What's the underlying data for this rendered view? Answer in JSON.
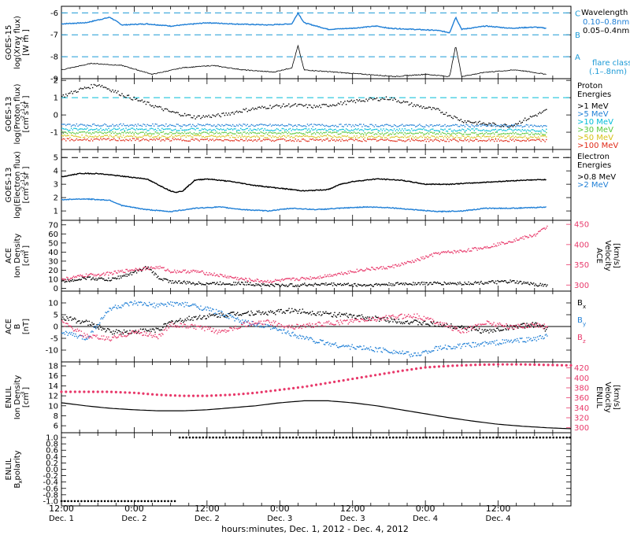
{
  "colors": {
    "black": "#000000",
    "blue": "#1f7fd6",
    "pink": "#e8386a",
    "cyan": "#00bcd8",
    "green": "#58c83a",
    "yellow": "#d6c218",
    "orange": "#f08a1c",
    "red": "#e02a18",
    "dash_cyan": "#1c9ad6"
  },
  "footer": {
    "title": "hours:minutes, Dec.  1, 2012 - Dec.  4, 2012",
    "ticks": [
      {
        "t": "12:00",
        "d": "Dec. 1"
      },
      {
        "t": "0:00",
        "d": "Dec. 2"
      },
      {
        "t": "12:00",
        "d": "Dec. 2"
      },
      {
        "t": "0:00",
        "d": "Dec. 3"
      },
      {
        "t": "12:00",
        "d": "Dec. 3"
      },
      {
        "t": "0:00",
        "d": "Dec. 4"
      },
      {
        "t": "12:00",
        "d": "Dec. 4"
      }
    ]
  },
  "chart_data": [
    {
      "type": "line",
      "panel": "goes15-xray",
      "ylabel_sat": "GOES-15",
      "ylabel_qty": "log(Xray flux)",
      "ylabel_unit": "[W m  ]",
      "ylabel_unit_sup": "-2",
      "ylim": [
        -9,
        -5.7
      ],
      "yticks": [
        "-9",
        "-8",
        "-7",
        "-6"
      ],
      "legend": {
        "title": "Wavelength",
        "entries": [
          {
            "name": "0.10–0.8nm",
            "color": "#1f7fd6"
          },
          {
            "name": "0.05–0.4nm",
            "color": "#000000"
          }
        ],
        "flare_label": "flare class",
        "flare_range": "(.1–.8nm)"
      },
      "flare_classes": [
        {
          "label": "A",
          "level": -8
        },
        {
          "label": "B",
          "level": -7
        },
        {
          "label": "C",
          "level": -6
        }
      ],
      "series": [
        {
          "color": "#1f7fd6",
          "x": [
            0,
            4,
            8,
            10,
            14,
            18,
            24,
            28,
            34,
            38,
            39,
            40,
            44,
            48,
            52,
            54,
            58,
            62,
            64,
            65,
            66,
            70,
            74,
            78,
            80
          ],
          "values": [
            -6.5,
            -6.45,
            -6.2,
            -6.55,
            -6.5,
            -6.6,
            -6.45,
            -6.5,
            -6.55,
            -6.5,
            -6.0,
            -6.45,
            -6.75,
            -6.7,
            -6.6,
            -6.7,
            -6.75,
            -6.8,
            -6.9,
            -6.2,
            -6.75,
            -6.6,
            -6.7,
            -6.65,
            -6.7
          ]
        },
        {
          "color": "#000000",
          "x": [
            0,
            5,
            10,
            15,
            20,
            25,
            30,
            35,
            38,
            39,
            40,
            45,
            50,
            55,
            60,
            64,
            65,
            66,
            70,
            75,
            80
          ],
          "values": [
            -8.6,
            -8.3,
            -8.4,
            -8.8,
            -8.5,
            -8.4,
            -8.6,
            -8.7,
            -8.5,
            -7.5,
            -8.6,
            -8.7,
            -8.8,
            -8.9,
            -8.8,
            -8.9,
            -7.5,
            -8.9,
            -8.7,
            -8.6,
            -8.8
          ]
        }
      ]
    },
    {
      "type": "scatter",
      "panel": "goes13-proton",
      "ylabel_sat": "GOES-13",
      "ylabel_qty": "log(Proton flux)",
      "ylabel_unit": "[cm  s  sr  ]",
      "ylabel_unit_sup": "-2   -1   -1",
      "ylim": [
        -2,
        2.1
      ],
      "yticks": [
        "-1",
        "0",
        "1",
        "2"
      ],
      "threshold": 1,
      "legend": {
        "title": "Proton",
        "title2": "Energies"
      },
      "series": [
        {
          "name": ">1 MeV",
          "color": "#000000",
          "x": [
            0,
            3,
            6,
            8,
            10,
            14,
            18,
            22,
            26,
            30,
            34,
            38,
            42,
            46,
            50,
            54,
            58,
            62,
            66,
            70,
            74,
            78,
            80
          ],
          "values": [
            1.1,
            1.5,
            1.8,
            1.5,
            1.2,
            0.7,
            0.2,
            -0.1,
            0.0,
            0.3,
            0.5,
            0.6,
            0.5,
            0.7,
            0.9,
            1.0,
            0.6,
            0.3,
            -0.3,
            -0.5,
            -0.6,
            0.0,
            0.3
          ]
        },
        {
          "name": ">5 MeV",
          "color": "#1f7fd6",
          "x": [
            0,
            80
          ],
          "values": [
            -0.55,
            -0.6
          ]
        },
        {
          "name": ">10 MeV",
          "color": "#00bcd8",
          "x": [
            0,
            80
          ],
          "values": [
            -0.8,
            -0.85
          ]
        },
        {
          "name": ">30 MeV",
          "color": "#58c83a",
          "x": [
            0,
            80
          ],
          "values": [
            -1.0,
            -1.05
          ]
        },
        {
          "name": ">50 MeV",
          "color": "#d6c218",
          "x": [
            0,
            80
          ],
          "values": [
            -1.2,
            -1.25
          ]
        },
        {
          "name": ">100 MeV",
          "color": "#e02a18",
          "x": [
            0,
            80
          ],
          "values": [
            -1.4,
            -1.45
          ]
        }
      ]
    },
    {
      "type": "line",
      "panel": "goes13-electron",
      "ylabel_sat": "GOES-13",
      "ylabel_qty": "log(Electron flux)",
      "ylabel_unit": "[cm  s  sr  ]",
      "ylabel_unit_sup": "-2   -1   -1",
      "ylim": [
        0.3,
        5.6
      ],
      "yticks": [
        "1",
        "2",
        "3",
        "4",
        "5"
      ],
      "threshold": 5,
      "legend": {
        "title": "Electron",
        "title2": "Energies"
      },
      "series": [
        {
          "name": ">0.8 MeV",
          "color": "#000000",
          "x": [
            0,
            3,
            6,
            10,
            14,
            18,
            19,
            20,
            22,
            24,
            28,
            32,
            36,
            40,
            44,
            46,
            48,
            52,
            56,
            60,
            64,
            68,
            72,
            76,
            80
          ],
          "values": [
            3.55,
            3.8,
            3.8,
            3.6,
            3.4,
            2.5,
            2.4,
            2.5,
            3.3,
            3.4,
            3.2,
            2.9,
            2.7,
            2.5,
            2.6,
            3.0,
            3.2,
            3.4,
            3.3,
            3.0,
            3.0,
            3.1,
            3.2,
            3.3,
            3.35
          ]
        },
        {
          "name": ">2 MeV",
          "color": "#1f7fd6",
          "x": [
            0,
            4,
            8,
            10,
            14,
            18,
            22,
            26,
            30,
            34,
            38,
            42,
            46,
            50,
            54,
            58,
            62,
            66,
            70,
            74,
            78,
            80
          ],
          "values": [
            1.85,
            1.9,
            1.8,
            1.4,
            1.1,
            0.95,
            1.2,
            1.3,
            1.1,
            1.0,
            1.2,
            1.1,
            1.2,
            1.3,
            1.25,
            1.1,
            0.95,
            1.0,
            1.2,
            1.2,
            1.25,
            1.3
          ]
        }
      ]
    },
    {
      "type": "scatter",
      "panel": "ace-plasma",
      "ylabel_sat": "ACE",
      "ylabel_qty": "Ion Density",
      "ylabel_unit": "[cm  ]",
      "ylabel_unit_sup": "-3",
      "ylim": [
        -3,
        75
      ],
      "yticks": [
        "0",
        "10",
        "20",
        "30",
        "40",
        "50",
        "60",
        "70"
      ],
      "right_label_sat": "ACE",
      "right_label_qty": "Velocity",
      "right_unit": "[km/s]",
      "right_ylim": [
        285,
        460
      ],
      "right_yticks": [
        "300",
        "350",
        "400",
        "450"
      ],
      "series": [
        {
          "name": "Density",
          "color": "#000000",
          "x": [
            0,
            4,
            8,
            12,
            14,
            16,
            18,
            22,
            26,
            30,
            34,
            38,
            42,
            46,
            50,
            54,
            58,
            62,
            66,
            70,
            74,
            78,
            80
          ],
          "values": [
            8,
            12,
            10,
            18,
            24,
            12,
            8,
            6,
            6,
            6,
            4,
            4,
            5,
            5,
            4,
            5,
            6,
            6,
            6,
            7,
            8,
            5,
            4
          ]
        },
        {
          "name": "Velocity",
          "color": "#e8386a",
          "axis": "right",
          "x": [
            0,
            4,
            8,
            12,
            16,
            18,
            22,
            26,
            30,
            34,
            38,
            42,
            46,
            50,
            54,
            58,
            62,
            66,
            70,
            74,
            78,
            80
          ],
          "values": [
            315,
            325,
            330,
            340,
            345,
            335,
            335,
            325,
            315,
            310,
            315,
            320,
            330,
            340,
            345,
            360,
            380,
            385,
            395,
            410,
            425,
            445
          ]
        }
      ]
    },
    {
      "type": "scatter",
      "panel": "ace-mag",
      "ylabel_sat": "ACE",
      "ylabel_qty": "B",
      "ylabel_unit": "[nT]",
      "ylim": [
        -15,
        15
      ],
      "yticks": [
        "-10",
        "-5",
        "0",
        "5",
        "10"
      ],
      "zero_line": 0,
      "legend": [
        {
          "name": "B",
          "sub": "x",
          "color": "#000000"
        },
        {
          "name": "B",
          "sub": "y",
          "color": "#1f7fd6"
        },
        {
          "name": "B",
          "sub": "z",
          "color": "#e8386a"
        }
      ],
      "series": [
        {
          "name": "Bx",
          "color": "#000000",
          "x": [
            0,
            4,
            8,
            12,
            16,
            18,
            22,
            26,
            30,
            34,
            38,
            42,
            46,
            50,
            54,
            58,
            62,
            66,
            70,
            74,
            78,
            80
          ],
          "values": [
            4,
            2,
            -2,
            -2,
            -1,
            2,
            4,
            5,
            6,
            6,
            7,
            6,
            5,
            4,
            3,
            2,
            1,
            0,
            -2,
            0,
            1,
            -1
          ]
        },
        {
          "name": "By",
          "color": "#1f7fd6",
          "x": [
            0,
            4,
            8,
            12,
            16,
            18,
            22,
            26,
            30,
            34,
            38,
            42,
            46,
            50,
            54,
            58,
            62,
            66,
            70,
            74,
            78,
            80
          ],
          "values": [
            -2,
            -5,
            8,
            10,
            9,
            10,
            9,
            6,
            2,
            0,
            -3,
            -6,
            -8,
            -9,
            -10,
            -12,
            -9,
            -8,
            -7,
            -6,
            -5,
            -4
          ]
        },
        {
          "name": "Bz",
          "color": "#e8386a",
          "x": [
            0,
            4,
            8,
            12,
            16,
            18,
            22,
            26,
            30,
            34,
            38,
            42,
            46,
            50,
            54,
            58,
            62,
            66,
            70,
            74,
            78,
            80
          ],
          "values": [
            2,
            -4,
            -5,
            -2,
            -4,
            1,
            0,
            -2,
            1,
            2,
            0,
            1,
            2,
            3,
            4,
            5,
            2,
            -2,
            2,
            0,
            1,
            0
          ]
        }
      ]
    },
    {
      "type": "line",
      "panel": "enlil-plasma",
      "ylabel_sat": "ENLIL",
      "ylabel_qty": "Ion Density",
      "ylabel_unit": "[cm  ]",
      "ylabel_unit_sup": "-3",
      "ylim": [
        4.6,
        18.8
      ],
      "yticks": [
        "6",
        "8",
        "10",
        "12",
        "14",
        "16",
        "18"
      ],
      "right_label_sat": "ENLIL",
      "right_label_qty": "Velocity",
      "right_unit": "[km/s]",
      "right_ylim": [
        290,
        432
      ],
      "right_yticks": [
        "300",
        "320",
        "340",
        "360",
        "380",
        "400",
        "420"
      ],
      "series": [
        {
          "name": "Density",
          "color": "#000000",
          "x": [
            0,
            4,
            8,
            12,
            16,
            20,
            24,
            28,
            32,
            36,
            40,
            44,
            48,
            52,
            56,
            60,
            64,
            68,
            72,
            76,
            80,
            84
          ],
          "values": [
            10.6,
            10.0,
            9.5,
            9.2,
            9.0,
            9.0,
            9.2,
            9.6,
            10.0,
            10.6,
            11.0,
            11.0,
            10.6,
            10.0,
            9.2,
            8.4,
            7.6,
            6.9,
            6.3,
            5.9,
            5.6,
            5.4
          ]
        },
        {
          "name": "Velocity",
          "color": "#e8386a",
          "axis": "right",
          "x": [
            0,
            4,
            8,
            12,
            16,
            20,
            24,
            28,
            32,
            36,
            40,
            44,
            48,
            52,
            56,
            60,
            64,
            68,
            72,
            76,
            80,
            84
          ],
          "values": [
            372,
            372,
            372,
            370,
            366,
            364,
            364,
            366,
            370,
            376,
            382,
            390,
            398,
            406,
            414,
            421,
            424,
            426,
            427,
            427,
            426,
            425
          ]
        }
      ]
    },
    {
      "type": "scatter",
      "panel": "enlil-polarity",
      "ylabel_sat": "ENLIL",
      "ylabel_qty": "B  polarity",
      "ylabel_qty_sub": "x",
      "ylim": [
        -1.15,
        1.15
      ],
      "yticks": [
        "-1.0",
        "-0.8",
        "-0.6",
        "-0.4",
        "-0.2",
        "0.0",
        "0.2",
        "0.4",
        "0.6",
        "0.8",
        "1.0"
      ],
      "series": [
        {
          "name": "Polarity",
          "color": "#000000",
          "segments": [
            {
              "x": [
                0,
                19
              ],
              "value": -1.0
            },
            {
              "x": [
                19.5,
                84
              ],
              "value": 1.0
            }
          ]
        }
      ]
    }
  ]
}
